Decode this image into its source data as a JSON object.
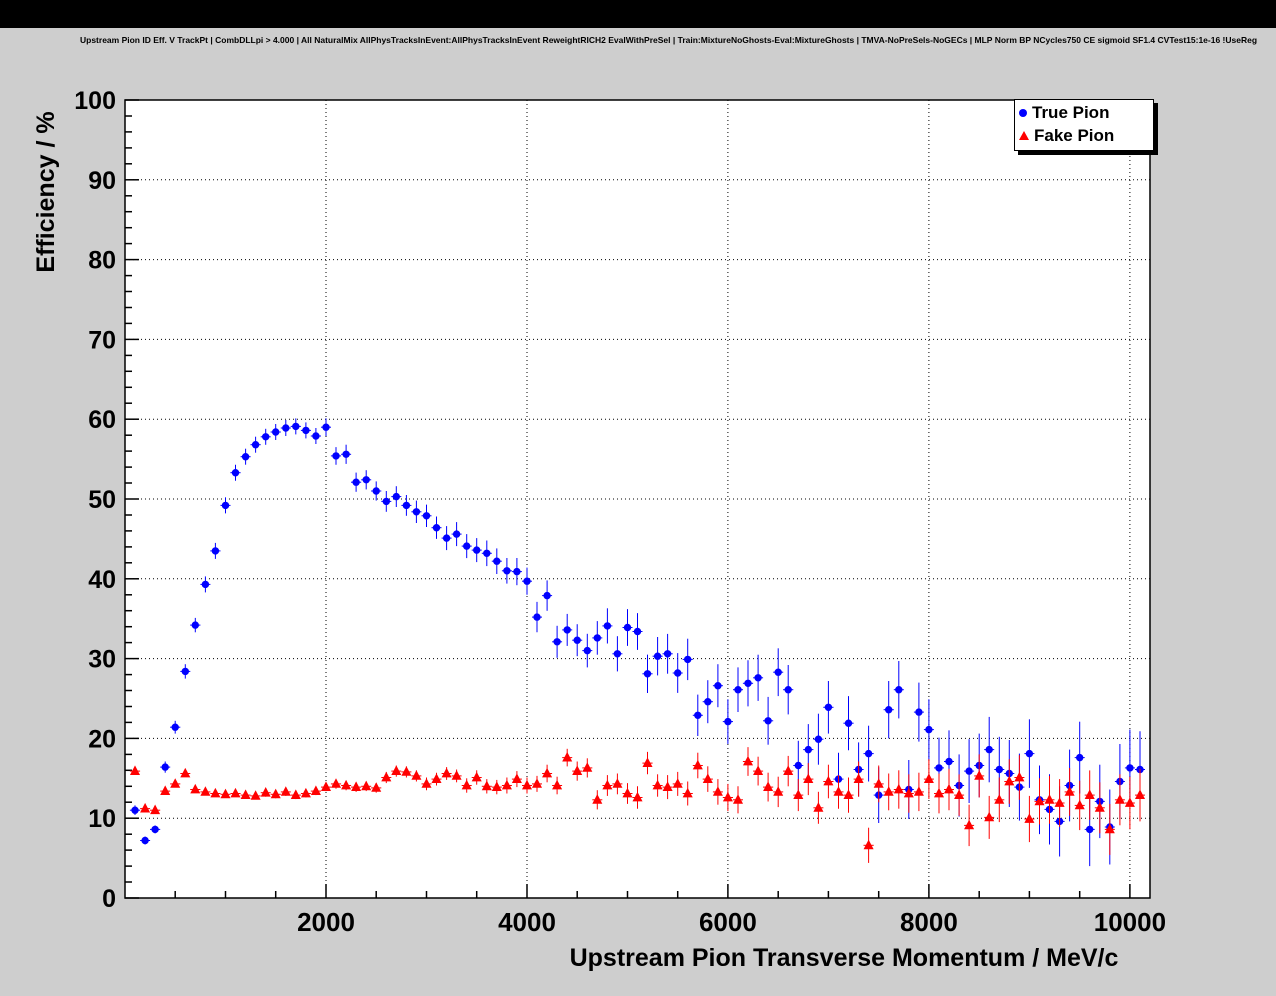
{
  "title": "Upstream Pion ID Eff. V TrackPt | CombDLLpi > 4.000 | All NaturalMix AllPhysTracksInEvent:AllPhysTracksInEvent ReweightRICH2 EvalWithPreSel | Train:MixtureNoGhosts-Eval:MixtureGhosts | TMVA-NoPreSels-NoGECs | MLP Norm BP NCycles750 CE sigmoid SF1.4 CVTest15:1e-16 !UseReg",
  "chart_data": {
    "type": "scatter",
    "title": "Upstream Pion ID Eff. V TrackPt | CombDLLpi > 4.000 | All NaturalMix AllPhysTracksInEvent:AllPhysTracksInEvent ReweightRICH2 EvalWithPreSel | Train:MixtureNoGhosts-Eval:MixtureGhosts | TMVA-NoPreSels-NoGECs | MLP Norm BP NCycles750 CE sigmoid SF1.4 CVTest15:1e-16 !UseReg",
    "xlabel": "Upstream Pion Transverse Momentum / MeV/c",
    "ylabel": "Efficiency / %",
    "xlim": [
      0,
      10200
    ],
    "ylim": [
      0,
      100
    ],
    "x_ticks": [
      2000,
      4000,
      6000,
      8000,
      10000
    ],
    "y_ticks": [
      0,
      10,
      20,
      30,
      40,
      50,
      60,
      70,
      80,
      90,
      100
    ],
    "x_minor_step": 500,
    "y_minor_step": 2,
    "grid": "dotted",
    "frame_background": "#ffffff",
    "canvas_background": "#cecece",
    "legend": {
      "position": "top-right",
      "entries": [
        {
          "label": "True Pion",
          "color": "#0000ff",
          "marker": "circle"
        },
        {
          "label": "Fake Pion",
          "color": "#ff0000",
          "marker": "triangle"
        }
      ]
    },
    "series": [
      {
        "name": "True Pion",
        "color": "#0000ff",
        "marker": "circle",
        "point_format": "[pt_MeV, efficiency_pct, error_pct]",
        "points": [
          [
            100,
            11.0,
            0.6
          ],
          [
            200,
            7.2,
            0.5
          ],
          [
            300,
            8.6,
            0.5
          ],
          [
            400,
            16.4,
            0.7
          ],
          [
            500,
            21.4,
            0.8
          ],
          [
            600,
            28.4,
            0.9
          ],
          [
            700,
            34.2,
            0.9
          ],
          [
            800,
            39.3,
            1.0
          ],
          [
            900,
            43.5,
            1.0
          ],
          [
            1000,
            49.2,
            1.0
          ],
          [
            1100,
            53.3,
            1.0
          ],
          [
            1200,
            55.3,
            1.0
          ],
          [
            1300,
            56.8,
            1.0
          ],
          [
            1400,
            57.8,
            1.0
          ],
          [
            1500,
            58.4,
            1.0
          ],
          [
            1600,
            58.9,
            1.0
          ],
          [
            1700,
            59.1,
            1.0
          ],
          [
            1800,
            58.6,
            1.0
          ],
          [
            1900,
            57.9,
            1.0
          ],
          [
            2000,
            59.0,
            1.1
          ],
          [
            2100,
            55.4,
            1.1
          ],
          [
            2200,
            55.6,
            1.2
          ],
          [
            2300,
            52.1,
            1.2
          ],
          [
            2400,
            52.4,
            1.2
          ],
          [
            2500,
            51.0,
            1.2
          ],
          [
            2600,
            49.7,
            1.3
          ],
          [
            2700,
            50.3,
            1.3
          ],
          [
            2800,
            49.2,
            1.3
          ],
          [
            2900,
            48.4,
            1.4
          ],
          [
            3000,
            47.9,
            1.4
          ],
          [
            3100,
            46.4,
            1.4
          ],
          [
            3200,
            45.1,
            1.5
          ],
          [
            3300,
            45.6,
            1.5
          ],
          [
            3400,
            44.1,
            1.5
          ],
          [
            3500,
            43.6,
            1.5
          ],
          [
            3600,
            43.2,
            1.6
          ],
          [
            3700,
            42.2,
            1.6
          ],
          [
            3800,
            41.0,
            1.6
          ],
          [
            3900,
            40.9,
            1.7
          ],
          [
            4000,
            39.7,
            1.7
          ],
          [
            4100,
            35.2,
            1.9
          ],
          [
            4200,
            37.9,
            1.9
          ],
          [
            4300,
            32.1,
            2.0
          ],
          [
            4400,
            33.6,
            2.0
          ],
          [
            4500,
            32.3,
            2.0
          ],
          [
            4600,
            31.0,
            2.1
          ],
          [
            4700,
            32.6,
            2.1
          ],
          [
            4800,
            34.1,
            2.2
          ],
          [
            4900,
            30.6,
            2.2
          ],
          [
            5000,
            33.9,
            2.3
          ],
          [
            5100,
            33.4,
            2.3
          ],
          [
            5200,
            28.1,
            2.4
          ],
          [
            5300,
            30.3,
            2.4
          ],
          [
            5400,
            30.6,
            2.5
          ],
          [
            5500,
            28.2,
            2.5
          ],
          [
            5600,
            29.9,
            2.6
          ],
          [
            5700,
            22.9,
            2.6
          ],
          [
            5800,
            24.6,
            2.7
          ],
          [
            5900,
            26.6,
            2.7
          ],
          [
            6000,
            22.1,
            2.8
          ],
          [
            6100,
            26.1,
            2.8
          ],
          [
            6200,
            26.9,
            2.9
          ],
          [
            6300,
            27.6,
            2.9
          ],
          [
            6400,
            22.2,
            3.0
          ],
          [
            6500,
            28.3,
            3.0
          ],
          [
            6600,
            26.1,
            3.1
          ],
          [
            6700,
            16.6,
            3.1
          ],
          [
            6800,
            18.6,
            3.2
          ],
          [
            6900,
            19.9,
            3.2
          ],
          [
            7000,
            23.9,
            3.3
          ],
          [
            7100,
            14.9,
            3.3
          ],
          [
            7200,
            21.9,
            3.4
          ],
          [
            7300,
            16.1,
            3.4
          ],
          [
            7400,
            18.1,
            3.5
          ],
          [
            7500,
            12.9,
            3.5
          ],
          [
            7600,
            23.6,
            3.6
          ],
          [
            7700,
            26.1,
            3.6
          ],
          [
            7800,
            13.6,
            3.7
          ],
          [
            7900,
            23.3,
            3.7
          ],
          [
            8000,
            21.1,
            3.8
          ],
          [
            8100,
            16.3,
            3.8
          ],
          [
            8200,
            17.1,
            3.9
          ],
          [
            8300,
            14.1,
            3.9
          ],
          [
            8400,
            15.9,
            4.0
          ],
          [
            8500,
            16.6,
            4.0
          ],
          [
            8600,
            18.6,
            4.1
          ],
          [
            8700,
            16.1,
            4.1
          ],
          [
            8800,
            15.6,
            4.2
          ],
          [
            8900,
            13.9,
            4.2
          ],
          [
            9000,
            18.1,
            4.3
          ],
          [
            9100,
            12.3,
            4.3
          ],
          [
            9200,
            11.1,
            4.4
          ],
          [
            9300,
            9.6,
            4.4
          ],
          [
            9400,
            14.1,
            4.5
          ],
          [
            9500,
            17.6,
            4.5
          ],
          [
            9600,
            8.6,
            4.6
          ],
          [
            9700,
            12.1,
            4.6
          ],
          [
            9800,
            8.9,
            4.7
          ],
          [
            9900,
            14.6,
            4.7
          ],
          [
            10000,
            16.3,
            4.8
          ],
          [
            10100,
            16.1,
            4.8
          ]
        ]
      },
      {
        "name": "Fake Pion",
        "color": "#ff0000",
        "marker": "triangle",
        "point_format": "[pt_MeV, efficiency_pct, error_pct]",
        "points": [
          [
            100,
            15.9,
            0.4
          ],
          [
            200,
            11.2,
            0.3
          ],
          [
            300,
            11.0,
            0.3
          ],
          [
            400,
            13.4,
            0.4
          ],
          [
            500,
            14.3,
            0.4
          ],
          [
            600,
            15.6,
            0.4
          ],
          [
            700,
            13.6,
            0.4
          ],
          [
            800,
            13.3,
            0.4
          ],
          [
            900,
            13.1,
            0.4
          ],
          [
            1000,
            13.0,
            0.4
          ],
          [
            1100,
            13.1,
            0.4
          ],
          [
            1200,
            12.9,
            0.4
          ],
          [
            1300,
            12.8,
            0.4
          ],
          [
            1400,
            13.2,
            0.5
          ],
          [
            1500,
            13.0,
            0.5
          ],
          [
            1600,
            13.3,
            0.5
          ],
          [
            1700,
            12.9,
            0.5
          ],
          [
            1800,
            13.1,
            0.5
          ],
          [
            1900,
            13.4,
            0.5
          ],
          [
            2000,
            13.9,
            0.5
          ],
          [
            2100,
            14.3,
            0.6
          ],
          [
            2200,
            14.1,
            0.6
          ],
          [
            2300,
            13.9,
            0.6
          ],
          [
            2400,
            14.0,
            0.6
          ],
          [
            2500,
            13.8,
            0.6
          ],
          [
            2600,
            15.1,
            0.7
          ],
          [
            2700,
            15.9,
            0.7
          ],
          [
            2800,
            15.8,
            0.7
          ],
          [
            2900,
            15.3,
            0.7
          ],
          [
            3000,
            14.3,
            0.8
          ],
          [
            3100,
            14.9,
            0.8
          ],
          [
            3200,
            15.6,
            0.8
          ],
          [
            3300,
            15.3,
            0.8
          ],
          [
            3400,
            14.1,
            0.9
          ],
          [
            3500,
            15.1,
            0.9
          ],
          [
            3600,
            14.0,
            0.9
          ],
          [
            3700,
            13.9,
            0.9
          ],
          [
            3800,
            14.1,
            1.0
          ],
          [
            3900,
            14.9,
            1.0
          ],
          [
            4000,
            14.1,
            1.0
          ],
          [
            4100,
            14.3,
            1.0
          ],
          [
            4200,
            15.6,
            1.1
          ],
          [
            4300,
            14.1,
            1.1
          ],
          [
            4400,
            17.6,
            1.1
          ],
          [
            4500,
            15.9,
            1.2
          ],
          [
            4600,
            16.3,
            1.2
          ],
          [
            4700,
            12.3,
            1.2
          ],
          [
            4800,
            14.1,
            1.3
          ],
          [
            4900,
            14.3,
            1.3
          ],
          [
            5000,
            13.1,
            1.3
          ],
          [
            5100,
            12.6,
            1.4
          ],
          [
            5200,
            16.9,
            1.4
          ],
          [
            5300,
            14.1,
            1.4
          ],
          [
            5400,
            13.9,
            1.5
          ],
          [
            5500,
            14.3,
            1.5
          ],
          [
            5600,
            13.1,
            1.5
          ],
          [
            5700,
            16.6,
            1.6
          ],
          [
            5800,
            14.9,
            1.6
          ],
          [
            5900,
            13.3,
            1.6
          ],
          [
            6000,
            12.6,
            1.7
          ],
          [
            6100,
            12.3,
            1.7
          ],
          [
            6200,
            17.1,
            1.8
          ],
          [
            6300,
            15.9,
            1.8
          ],
          [
            6400,
            13.9,
            1.8
          ],
          [
            6500,
            13.3,
            1.9
          ],
          [
            6600,
            15.9,
            1.9
          ],
          [
            6700,
            12.9,
            2.0
          ],
          [
            6800,
            14.9,
            2.0
          ],
          [
            6900,
            11.3,
            2.0
          ],
          [
            7000,
            14.6,
            2.1
          ],
          [
            7100,
            13.3,
            2.1
          ],
          [
            7200,
            12.9,
            2.2
          ],
          [
            7300,
            14.9,
            2.2
          ],
          [
            7400,
            6.6,
            2.2
          ],
          [
            7500,
            14.3,
            2.3
          ],
          [
            7600,
            13.3,
            2.3
          ],
          [
            7700,
            13.6,
            2.4
          ],
          [
            7800,
            13.1,
            2.4
          ],
          [
            7900,
            13.3,
            2.4
          ],
          [
            8000,
            14.9,
            2.5
          ],
          [
            8100,
            13.1,
            2.5
          ],
          [
            8200,
            13.6,
            2.6
          ],
          [
            8300,
            12.9,
            2.6
          ],
          [
            8400,
            9.1,
            2.6
          ],
          [
            8500,
            15.3,
            2.7
          ],
          [
            8600,
            10.1,
            2.7
          ],
          [
            8700,
            12.3,
            2.8
          ],
          [
            8800,
            14.6,
            2.8
          ],
          [
            8900,
            15.1,
            2.8
          ],
          [
            9000,
            9.9,
            2.9
          ],
          [
            9100,
            12.1,
            2.9
          ],
          [
            9200,
            12.3,
            3.0
          ],
          [
            9300,
            11.9,
            3.0
          ],
          [
            9400,
            13.3,
            3.0
          ],
          [
            9500,
            11.6,
            3.1
          ],
          [
            9600,
            12.9,
            3.1
          ],
          [
            9700,
            11.3,
            3.2
          ],
          [
            9800,
            8.6,
            3.2
          ],
          [
            9900,
            12.3,
            3.2
          ],
          [
            10000,
            11.9,
            3.3
          ],
          [
            10100,
            12.9,
            3.3
          ]
        ]
      }
    ]
  }
}
